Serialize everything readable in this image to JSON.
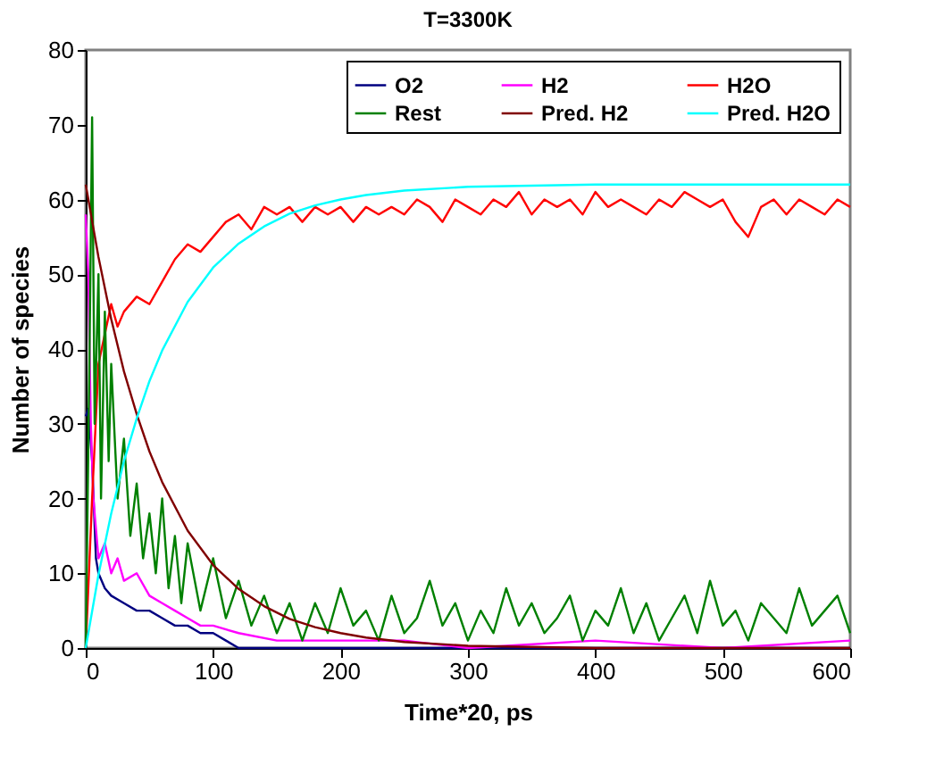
{
  "chart_data": {
    "type": "line",
    "title": "T=3300K",
    "xlabel": "Time*20, ps",
    "ylabel": "Number of species",
    "xlim": [
      0,
      600
    ],
    "xticks": [
      0,
      100,
      200,
      300,
      400,
      500,
      600
    ],
    "ylim": [
      0,
      80
    ],
    "yticks": [
      0,
      10,
      20,
      30,
      40,
      50,
      60,
      70,
      80
    ],
    "grid": false,
    "legend": "top right",
    "marker": "none",
    "line_style": "solid",
    "series": [
      {
        "name": "O2",
        "color": "#000080",
        "x": [
          0,
          2,
          5,
          8,
          10,
          15,
          20,
          30,
          40,
          50,
          60,
          70,
          80,
          90,
          100,
          110,
          120,
          200,
          300,
          400,
          500,
          600
        ],
        "values": [
          31,
          32,
          25,
          12,
          10,
          8,
          7,
          6,
          5,
          5,
          4,
          3,
          3,
          2,
          2,
          1,
          0,
          0,
          0,
          0,
          0,
          0
        ]
      },
      {
        "name": "H2",
        "color": "#ff00ff",
        "x": [
          0,
          2,
          4,
          6,
          10,
          15,
          20,
          25,
          30,
          40,
          50,
          60,
          70,
          80,
          90,
          100,
          120,
          150,
          200,
          250,
          300,
          400,
          500,
          600
        ],
        "values": [
          58,
          50,
          30,
          20,
          12,
          14,
          10,
          12,
          9,
          10,
          7,
          6,
          5,
          4,
          3,
          3,
          2,
          1,
          1,
          1,
          0,
          1,
          0,
          1
        ]
      },
      {
        "name": "H2O",
        "color": "#ff0000",
        "x": [
          0,
          5,
          10,
          15,
          20,
          25,
          30,
          40,
          50,
          60,
          70,
          80,
          90,
          100,
          110,
          120,
          130,
          140,
          150,
          160,
          170,
          180,
          190,
          200,
          210,
          220,
          230,
          240,
          250,
          260,
          270,
          280,
          290,
          300,
          310,
          320,
          330,
          340,
          350,
          360,
          370,
          380,
          390,
          400,
          410,
          420,
          430,
          440,
          450,
          460,
          470,
          480,
          490,
          500,
          510,
          520,
          530,
          540,
          550,
          560,
          570,
          580,
          590,
          600
        ],
        "values": [
          0,
          20,
          38,
          42,
          46,
          43,
          45,
          47,
          46,
          49,
          52,
          54,
          53,
          55,
          57,
          58,
          56,
          59,
          58,
          59,
          57,
          59,
          58,
          59,
          57,
          59,
          58,
          59,
          58,
          60,
          59,
          57,
          60,
          59,
          58,
          60,
          59,
          61,
          58,
          60,
          59,
          60,
          58,
          61,
          59,
          60,
          59,
          58,
          60,
          59,
          61,
          60,
          59,
          60,
          57,
          55,
          59,
          60,
          58,
          60,
          59,
          58,
          60,
          59
        ]
      },
      {
        "name": "Rest",
        "color": "#008000",
        "x": [
          0,
          3,
          5,
          7,
          10,
          12,
          15,
          18,
          20,
          25,
          30,
          35,
          40,
          45,
          50,
          55,
          60,
          65,
          70,
          75,
          80,
          90,
          100,
          110,
          120,
          130,
          140,
          150,
          160,
          170,
          180,
          190,
          200,
          210,
          220,
          230,
          240,
          250,
          260,
          270,
          280,
          290,
          300,
          310,
          320,
          330,
          340,
          350,
          360,
          370,
          380,
          390,
          400,
          410,
          420,
          430,
          440,
          450,
          460,
          470,
          480,
          490,
          500,
          510,
          520,
          530,
          540,
          550,
          560,
          570,
          580,
          590,
          600
        ],
        "values": [
          0,
          40,
          71,
          30,
          50,
          20,
          45,
          25,
          38,
          20,
          28,
          15,
          22,
          12,
          18,
          10,
          20,
          8,
          15,
          6,
          14,
          5,
          12,
          4,
          9,
          3,
          7,
          2,
          6,
          1,
          6,
          2,
          8,
          3,
          5,
          1,
          7,
          2,
          4,
          9,
          3,
          6,
          1,
          5,
          2,
          8,
          3,
          6,
          2,
          4,
          7,
          1,
          5,
          3,
          8,
          2,
          6,
          1,
          4,
          7,
          2,
          9,
          3,
          5,
          1,
          6,
          4,
          2,
          8,
          3,
          5,
          7,
          2
        ]
      },
      {
        "name": "Pred. H2",
        "color": "#800000",
        "x": [
          0,
          10,
          20,
          30,
          40,
          50,
          60,
          80,
          100,
          120,
          140,
          160,
          180,
          200,
          220,
          250,
          300,
          400,
          500,
          600
        ],
        "values": [
          62,
          52.3,
          44,
          37,
          31.3,
          26.3,
          22.2,
          15.7,
          11.1,
          7.9,
          5.6,
          3.9,
          2.8,
          2,
          1.4,
          0.8,
          0.3,
          0,
          0,
          0
        ]
      },
      {
        "name": "Pred. H2O",
        "color": "#00ffff",
        "x": [
          0,
          10,
          20,
          30,
          40,
          50,
          60,
          80,
          100,
          120,
          140,
          160,
          180,
          200,
          220,
          250,
          300,
          400,
          500,
          600
        ],
        "values": [
          0,
          9.8,
          18,
          25,
          30.7,
          35.7,
          39.8,
          46.3,
          50.9,
          54.1,
          56.4,
          58.1,
          59.2,
          60,
          60.6,
          61.2,
          61.7,
          62,
          62,
          62
        ]
      }
    ]
  }
}
